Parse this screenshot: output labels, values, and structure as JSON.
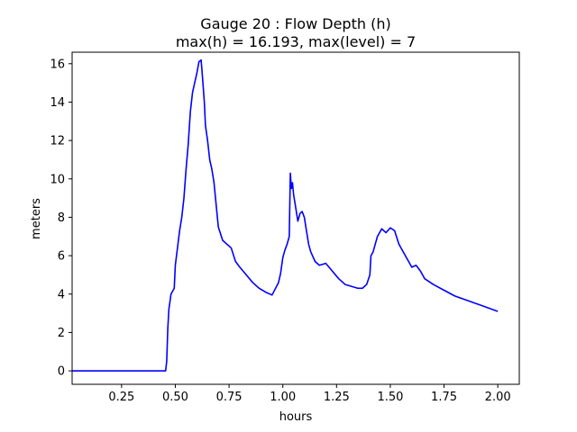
{
  "chart_data": {
    "type": "line",
    "title": "Gauge 20 : Flow Depth (h)",
    "subtitle": "max(h) =  16.193,    max(level) = 7",
    "xlabel": "hours",
    "ylabel": "meters",
    "xlim": [
      0.02,
      2.1
    ],
    "ylim": [
      -0.7,
      16.6
    ],
    "xticks": [
      0.25,
      0.5,
      0.75,
      1.0,
      1.25,
      1.5,
      1.75,
      2.0
    ],
    "xtick_labels": [
      "0.25",
      "0.50",
      "0.75",
      "1.00",
      "1.25",
      "1.50",
      "1.75",
      "2.00"
    ],
    "yticks": [
      0,
      2,
      4,
      6,
      8,
      10,
      12,
      14,
      16
    ],
    "ytick_labels": [
      "0",
      "2",
      "4",
      "6",
      "8",
      "10",
      "12",
      "14",
      "16"
    ],
    "grid": false,
    "line_color": "#0000ff",
    "series": [
      {
        "x": [
          0.02,
          0.1,
          0.2,
          0.3,
          0.4,
          0.455,
          0.46,
          0.465,
          0.47,
          0.48,
          0.495,
          0.5,
          0.51,
          0.52,
          0.53,
          0.54,
          0.55,
          0.56,
          0.57,
          0.58,
          0.59,
          0.6,
          0.61,
          0.62,
          0.625,
          0.635,
          0.64,
          0.65,
          0.66,
          0.67,
          0.68,
          0.7,
          0.72,
          0.74,
          0.76,
          0.78,
          0.8,
          0.83,
          0.86,
          0.89,
          0.92,
          0.95,
          0.98,
          0.99,
          1.0,
          1.01,
          1.02,
          1.03,
          1.035,
          1.04,
          1.045,
          1.05,
          1.06,
          1.07,
          1.08,
          1.09,
          1.1,
          1.11,
          1.12,
          1.13,
          1.15,
          1.17,
          1.2,
          1.23,
          1.26,
          1.29,
          1.32,
          1.35,
          1.37,
          1.39,
          1.405,
          1.41,
          1.42,
          1.44,
          1.46,
          1.48,
          1.5,
          1.52,
          1.54,
          1.56,
          1.58,
          1.6,
          1.62,
          1.64,
          1.66,
          1.7,
          1.75,
          1.8,
          1.85,
          1.9,
          1.95,
          2.0
        ],
        "y": [
          0,
          0,
          0,
          0,
          0,
          0,
          0.5,
          2.2,
          3.2,
          4.0,
          4.3,
          5.5,
          6.4,
          7.3,
          8.0,
          9.0,
          10.5,
          11.8,
          13.5,
          14.5,
          15.0,
          15.5,
          16.1,
          16.193,
          15.5,
          14.0,
          12.8,
          12.0,
          11.0,
          10.5,
          9.8,
          7.5,
          6.8,
          6.6,
          6.4,
          5.7,
          5.4,
          5.0,
          4.6,
          4.3,
          4.1,
          3.95,
          4.6,
          5.1,
          5.9,
          6.3,
          6.6,
          7.0,
          10.3,
          9.5,
          9.8,
          9.2,
          8.5,
          7.8,
          8.2,
          8.3,
          8.0,
          7.3,
          6.6,
          6.2,
          5.7,
          5.5,
          5.6,
          5.2,
          4.8,
          4.5,
          4.4,
          4.3,
          4.3,
          4.5,
          5.0,
          6.0,
          6.2,
          7.0,
          7.4,
          7.2,
          7.45,
          7.3,
          6.6,
          6.2,
          5.8,
          5.4,
          5.5,
          5.2,
          4.8,
          4.5,
          4.2,
          3.9,
          3.7,
          3.5,
          3.3,
          3.1
        ]
      }
    ]
  }
}
